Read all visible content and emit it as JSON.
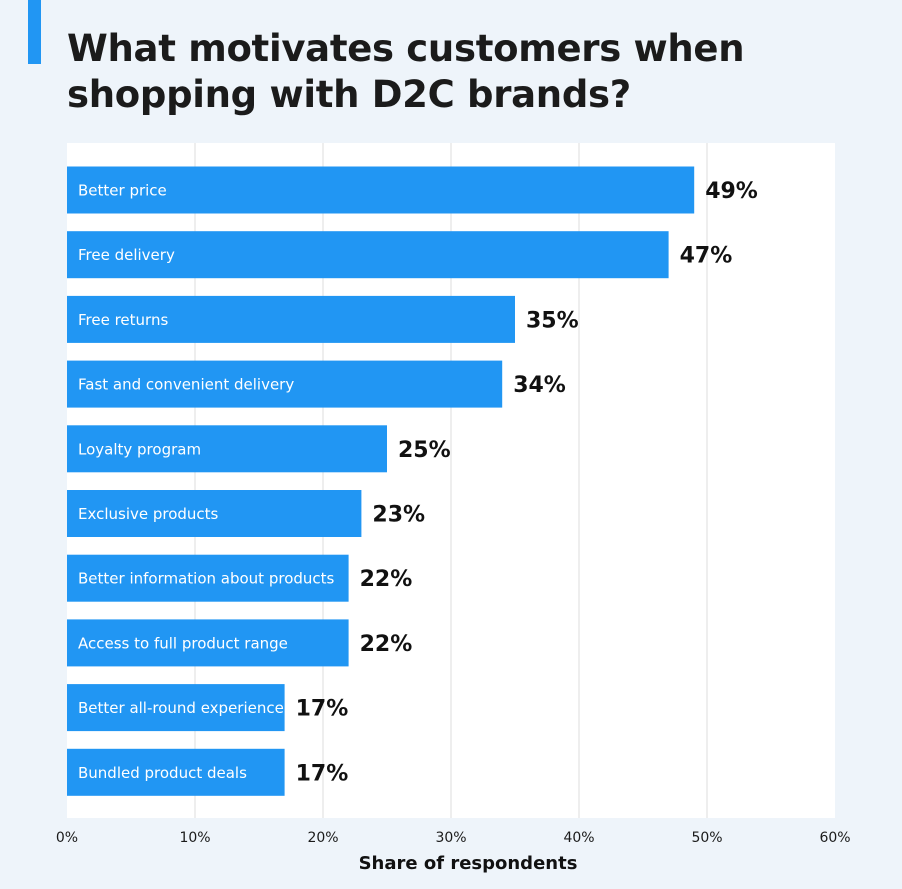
{
  "chart_data": {
    "type": "bar",
    "orientation": "horizontal",
    "title": [
      "What motivates customers when",
      "shopping with D2C brands?"
    ],
    "xlabel": "Share of respondents",
    "ylabel": "",
    "xlim": [
      0,
      60
    ],
    "x_ticks": [
      0,
      10,
      20,
      30,
      40,
      50,
      60
    ],
    "x_tick_labels": [
      "0%",
      "10%",
      "20%",
      "30%",
      "40%",
      "50%",
      "60%"
    ],
    "grid": true,
    "categories": [
      "Better price",
      "Free delivery",
      "Free returns",
      "Fast and convenient delivery",
      "Loyalty program",
      "Exclusive products",
      "Better information about products",
      "Access to full product range",
      "Better all-round experience",
      "Bundled product deals"
    ],
    "values": [
      49,
      47,
      35,
      34,
      25,
      23,
      22,
      22,
      17,
      17
    ],
    "value_labels": [
      "49%",
      "47%",
      "35%",
      "34%",
      "25%",
      "23%",
      "22%",
      "22%",
      "17%",
      "17%"
    ],
    "colors": {
      "bar": "#2196f3",
      "accent": "#2196f3",
      "plot_background": "#ffffff",
      "page_background": "#eef4fa",
      "gridline": "#dcdcdc"
    }
  }
}
